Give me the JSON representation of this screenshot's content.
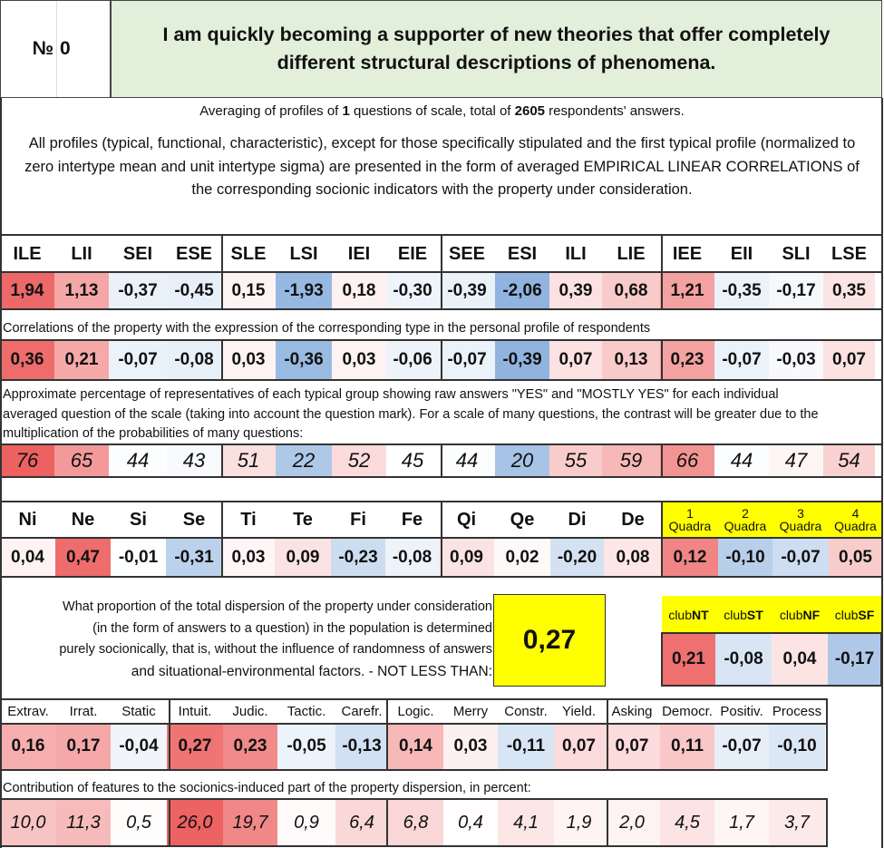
{
  "header": {
    "no_label": "№",
    "no_value": "0",
    "question": "I am quickly becoming a supporter of new theories that offer completely different structural descriptions of phenomena."
  },
  "averaging": {
    "prefix": "Averaging of profiles of ",
    "count": "1",
    "middle": " questions of scale, total of ",
    "total": "2605",
    "suffix": " respondents' answers."
  },
  "intro": "All profiles (typical, functional, characteristic), except for those specifically stipulated and the first typical profile (normalized to zero intertype mean and unit intertype sigma) are presented in the form of averaged EMPIRICAL LINEAR CORRELATIONS of the corresponding socionic indicators with the property under consideration.",
  "types": {
    "headers": [
      "ILE",
      "LII",
      "SEI",
      "ESE",
      "SLE",
      "LSI",
      "IEI",
      "EIE",
      "SEE",
      "ESI",
      "ILI",
      "LIE",
      "IEE",
      "EII",
      "SLI",
      "LSE"
    ],
    "values": [
      "1,94",
      "1,13",
      "-0,37",
      "-0,45",
      "0,15",
      "-1,93",
      "0,18",
      "-0,30",
      "-0,39",
      "-2,06",
      "0,39",
      "0,68",
      "1,21",
      "-0,35",
      "-0,17",
      "0,35"
    ],
    "correlation_caption": "Correlations of the property with the expression of the corresponding type in the personal profile of respondents",
    "correlations": [
      "0,36",
      "0,21",
      "-0,07",
      "-0,08",
      "0,03",
      "-0,36",
      "0,03",
      "-0,06",
      "-0,07",
      "-0,39",
      "0,07",
      "0,13",
      "0,23",
      "-0,07",
      "-0,03",
      "0,07"
    ],
    "percent_caption_1": "Approximate percentage of representatives of each typical group showing raw answers \"YES\" and \"MOSTLY YES\" for each individual",
    "percent_caption_2": "averaged question of the scale (taking into account the question mark). For a scale of many questions, the contrast will be greater due to the",
    "percent_caption_3": "multiplication of the probabilities of many questions:",
    "percents": [
      "76",
      "65",
      "44",
      "43",
      "51",
      "22",
      "52",
      "45",
      "44",
      "20",
      "55",
      "59",
      "66",
      "44",
      "47",
      "54"
    ]
  },
  "functions": {
    "headers": [
      "Ni",
      "Ne",
      "Si",
      "Se",
      "Ti",
      "Te",
      "Fi",
      "Fe",
      "Qi",
      "Qe",
      "Di",
      "De"
    ],
    "values": [
      "0,04",
      "0,47",
      "-0,01",
      "-0,31",
      "0,03",
      "0,09",
      "-0,23",
      "-0,08",
      "0,09",
      "0,02",
      "-0,20",
      "0,08"
    ],
    "quadra_numbers": [
      "1",
      "2",
      "3",
      "4"
    ],
    "quadra_word": "Quadra",
    "quadra_values": [
      "0,12",
      "-0,10",
      "-0,07",
      "0,05"
    ]
  },
  "dispersion": {
    "line1": "What proportion of the total dispersion of the property under consideration",
    "line2": "(in the form of answers to a question) in the population is determined",
    "line3": "purely socionically, that is, without the influence of randomness of answers",
    "line4": "and situational-environmental factors. - NOT LESS THAN:",
    "value": "0,27"
  },
  "clubs": {
    "prefix": "club",
    "suffixes": [
      "NT",
      "ST",
      "NF",
      "SF"
    ],
    "values": [
      "0,21",
      "-0,08",
      "0,04",
      "-0,17"
    ]
  },
  "traits": {
    "headers": [
      "Extrav.",
      "Irrat.",
      "Static",
      "Intuit.",
      "Judic.",
      "Tactic.",
      "Carefr.",
      "Logic.",
      "Merry",
      "Constr.",
      "Yield.",
      "Asking",
      "Democr.",
      "Positiv.",
      "Process"
    ],
    "values": [
      "0,16",
      "0,17",
      "-0,04",
      "0,27",
      "0,23",
      "-0,05",
      "-0,13",
      "0,14",
      "0,03",
      "-0,11",
      "0,07",
      "0,07",
      "0,11",
      "-0,07",
      "-0,10"
    ],
    "contribution_caption": "Contribution of features to the socionics-induced part of the property dispersion, in percent:",
    "contributions": [
      "10,0",
      "11,3",
      "0,5",
      "26,0",
      "19,7",
      "0,9",
      "6,4",
      "6,8",
      "0,4",
      "4,1",
      "1,9",
      "2,0",
      "4,5",
      "1,7",
      "3,7"
    ]
  },
  "colors": {
    "highlight_yellow": "#ffff00",
    "header_green": "#e2efda",
    "strong_red": "#ee5f5f",
    "strong_blue": "#8fb3df"
  }
}
